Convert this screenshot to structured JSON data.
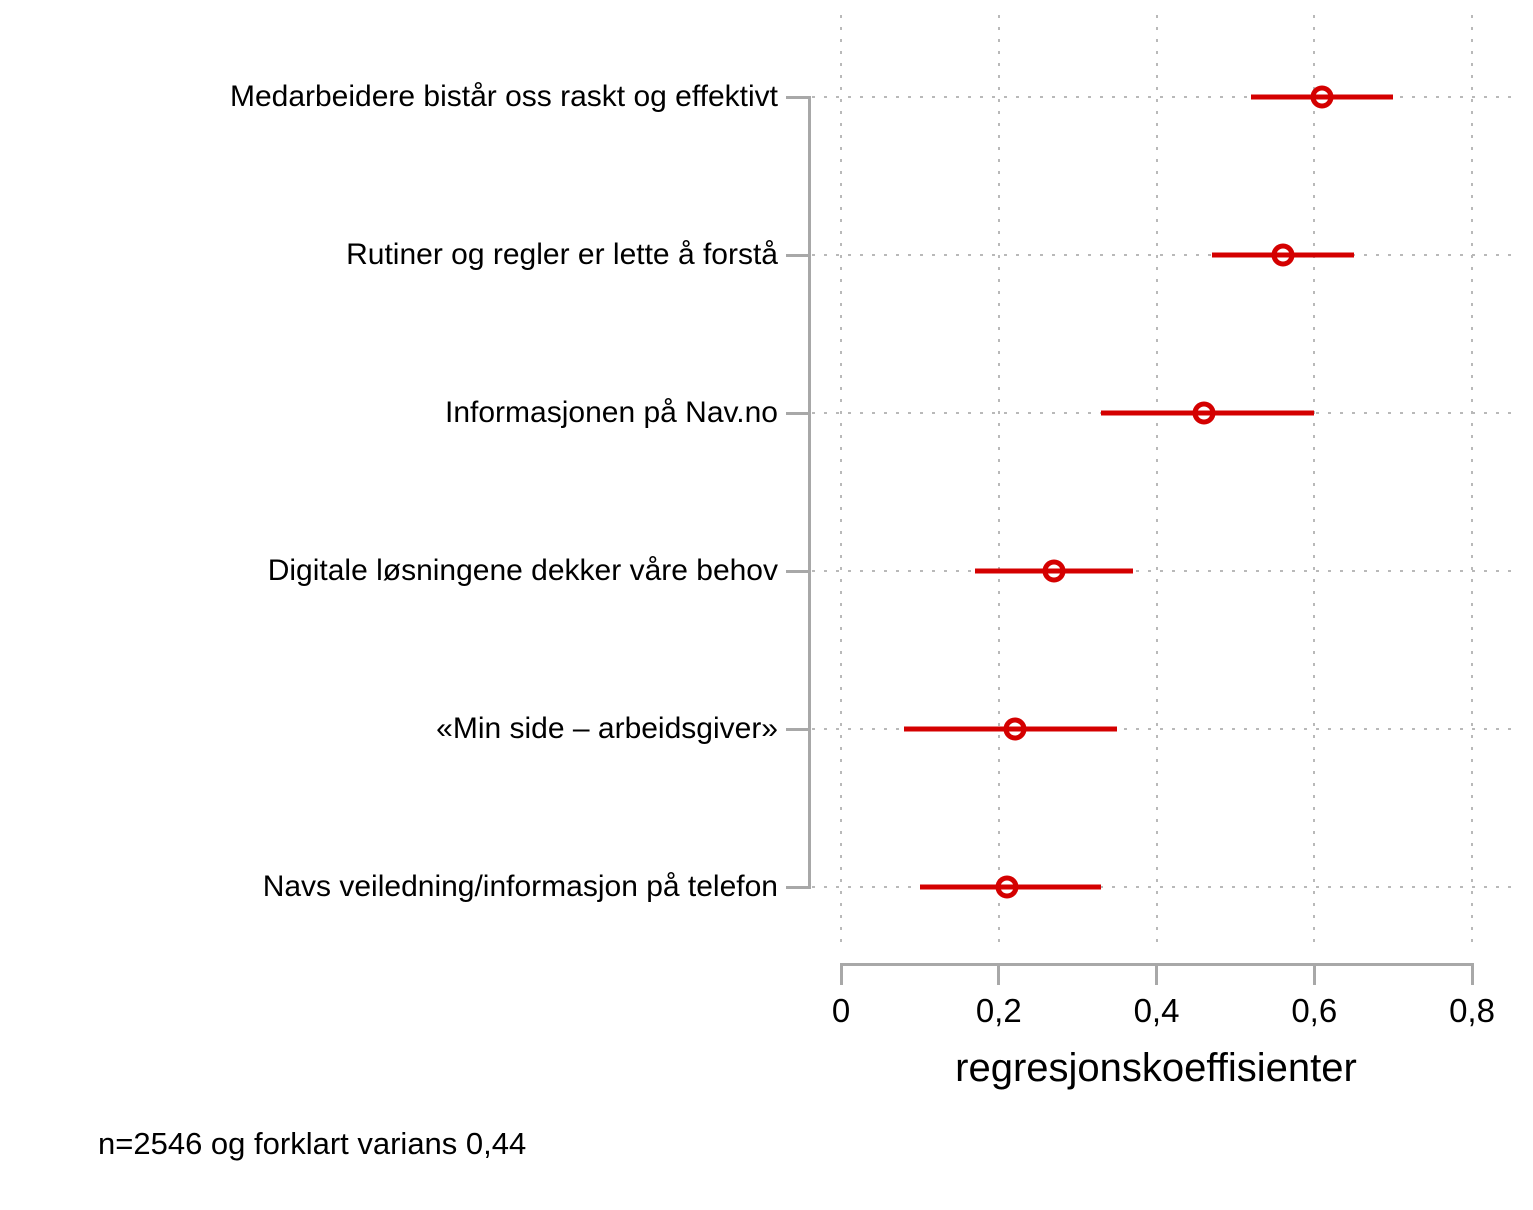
{
  "chart_data": {
    "type": "scatter",
    "subtype": "coefficient-plot-with-ci",
    "title": "",
    "xlabel": "regresjonskoeffisienter",
    "ylabel": "",
    "xlim": [
      0,
      0.8
    ],
    "grid": true,
    "legend": "none",
    "marker_color": "#d40000",
    "axis_color": "#a8a8a8",
    "grid_color": "#b9b9b9",
    "xticks": [
      {
        "label": "0",
        "value": 0.0
      },
      {
        "label": "0,2",
        "value": 0.2
      },
      {
        "label": "0,4",
        "value": 0.4
      },
      {
        "label": "0,6",
        "value": 0.6
      },
      {
        "label": "0,8",
        "value": 0.8
      }
    ],
    "rows": [
      {
        "label": "Medarbeidere bistår oss raskt og effektivt",
        "estimate": 0.61,
        "ci_low": 0.52,
        "ci_high": 0.7
      },
      {
        "label": "Rutiner og regler er lette å forstå",
        "estimate": 0.56,
        "ci_low": 0.47,
        "ci_high": 0.65
      },
      {
        "label": "Informasjonen på Nav.no",
        "estimate": 0.46,
        "ci_low": 0.33,
        "ci_high": 0.6
      },
      {
        "label": "Digitale løsningene dekker våre behov",
        "estimate": 0.27,
        "ci_low": 0.17,
        "ci_high": 0.37
      },
      {
        "label": "«Min side – arbeidsgiver»",
        "estimate": 0.22,
        "ci_low": 0.08,
        "ci_high": 0.35
      },
      {
        "label": "Navs veiledning/informasjon på telefon",
        "estimate": 0.21,
        "ci_low": 0.1,
        "ci_high": 0.33
      }
    ],
    "note": "n=2546 og forklart varians 0,44"
  }
}
